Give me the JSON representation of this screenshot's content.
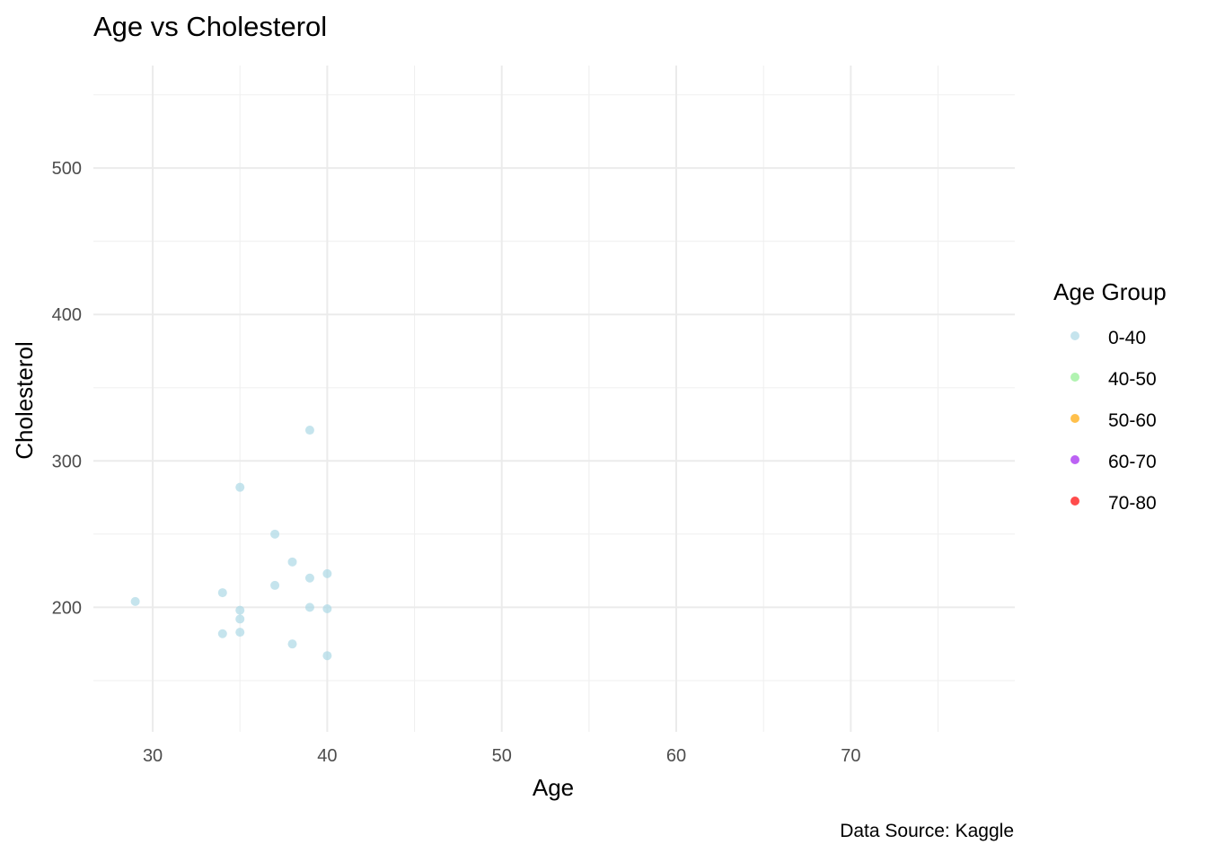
{
  "chart_data": {
    "type": "scatter",
    "title": "Age vs Cholesterol",
    "xlabel": "Age",
    "ylabel": "Cholesterol",
    "caption": "Data Source: Kaggle",
    "xlim": [
      26.6,
      79.4
    ],
    "ylim": [
      115,
      570
    ],
    "x_ticks": [
      30,
      40,
      50,
      60,
      70
    ],
    "x_tick_labels": [
      "30",
      "40",
      "50",
      "60",
      "70"
    ],
    "y_ticks": [
      200,
      300,
      400,
      500
    ],
    "y_tick_labels": [
      "200",
      "300",
      "400",
      "500"
    ],
    "x_minor": [
      35,
      45,
      55,
      65,
      75
    ],
    "y_minor": [
      150,
      250,
      350,
      450,
      550
    ],
    "grid": true,
    "legend": {
      "title": "Age Group",
      "position": "right",
      "entries": [
        {
          "label": "0-40",
          "color": "#add8e6"
        },
        {
          "label": "40-50",
          "color": "#90ee90"
        },
        {
          "label": "50-60",
          "color": "#ffa500"
        },
        {
          "label": "60-70",
          "color": "#a020f0"
        },
        {
          "label": "70-80",
          "color": "#ff0000"
        }
      ]
    },
    "series": [
      {
        "name": "0-40",
        "color": "#add8e6",
        "points": [
          {
            "x": 29,
            "y": 204
          },
          {
            "x": 34,
            "y": 210
          },
          {
            "x": 34,
            "y": 182
          },
          {
            "x": 35,
            "y": 282
          },
          {
            "x": 35,
            "y": 198
          },
          {
            "x": 35,
            "y": 192
          },
          {
            "x": 35,
            "y": 183
          },
          {
            "x": 37,
            "y": 250
          },
          {
            "x": 37,
            "y": 215
          },
          {
            "x": 38,
            "y": 231
          },
          {
            "x": 38,
            "y": 175
          },
          {
            "x": 39,
            "y": 321
          },
          {
            "x": 39,
            "y": 220
          },
          {
            "x": 39,
            "y": 200
          },
          {
            "x": 40,
            "y": 223
          },
          {
            "x": 40,
            "y": 199
          },
          {
            "x": 40,
            "y": 167
          }
        ]
      }
    ]
  }
}
